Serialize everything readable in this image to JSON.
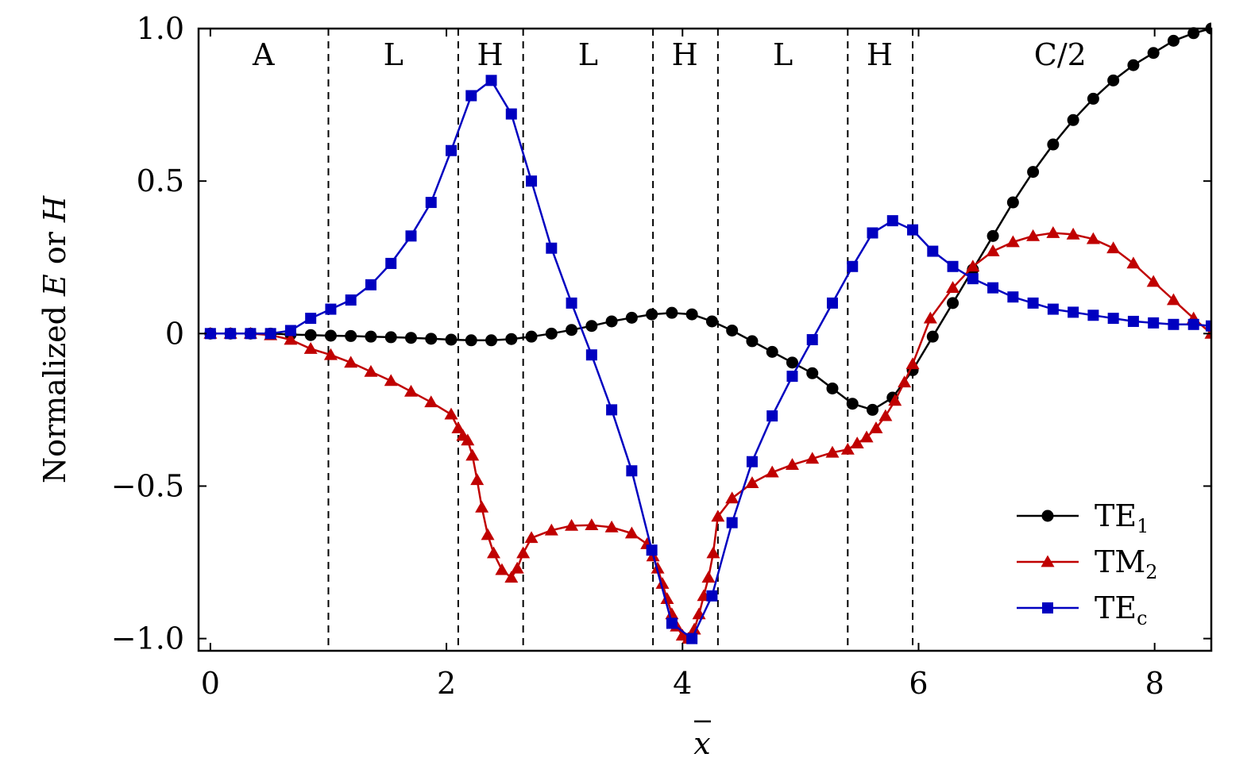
{
  "chart_data": {
    "type": "line",
    "xlabel_base": "x",
    "ylabel": {
      "prefix": "Normalized ",
      "e": "E",
      "mid": " or ",
      "h": "H"
    },
    "xlim": [
      -0.1,
      8.48
    ],
    "ylim": [
      -1.04,
      1.0
    ],
    "x_ticks": [
      0,
      2,
      4,
      6,
      8
    ],
    "x_tick_labels": [
      "0",
      "2",
      "4",
      "6",
      "8"
    ],
    "y_ticks": [
      1.0,
      0.5,
      0,
      -0.5,
      -1.0
    ],
    "y_tick_labels": [
      "1.0",
      "0.5",
      "0",
      "−0.5",
      "−1.0"
    ],
    "boundaries": [
      1.0,
      2.1,
      2.65,
      3.75,
      4.3,
      5.4,
      5.95
    ],
    "regions": [
      {
        "label": "A",
        "x": 0.45
      },
      {
        "label": "L",
        "x": 1.55
      },
      {
        "label": "H",
        "x": 2.37
      },
      {
        "label": "L",
        "x": 3.2
      },
      {
        "label": "H",
        "x": 4.02
      },
      {
        "label": "L",
        "x": 4.85
      },
      {
        "label": "H",
        "x": 5.67
      },
      {
        "label": "C/2",
        "x": 7.2
      }
    ],
    "series": [
      {
        "name": "TE",
        "sub": "1",
        "color": "#000000",
        "marker": "circle",
        "x": [
          0,
          0.17,
          0.34,
          0.51,
          0.68,
          0.85,
          1.02,
          1.19,
          1.36,
          1.53,
          1.7,
          1.87,
          2.04,
          2.21,
          2.38,
          2.55,
          2.72,
          2.89,
          3.06,
          3.23,
          3.4,
          3.57,
          3.74,
          3.91,
          4.08,
          4.25,
          4.42,
          4.59,
          4.76,
          4.93,
          5.1,
          5.27,
          5.44,
          5.61,
          5.78,
          5.95,
          6.12,
          6.29,
          6.46,
          6.63,
          6.8,
          6.97,
          7.14,
          7.31,
          7.48,
          7.65,
          7.82,
          7.99,
          8.16,
          8.33,
          8.48
        ],
        "y": [
          0,
          0,
          0,
          0,
          -0.003,
          -0.005,
          -0.007,
          -0.008,
          -0.01,
          -0.012,
          -0.014,
          -0.017,
          -0.02,
          -0.022,
          -0.022,
          -0.018,
          -0.01,
          0,
          0.012,
          0.025,
          0.04,
          0.052,
          0.063,
          0.068,
          0.063,
          0.04,
          0.01,
          -0.025,
          -0.06,
          -0.095,
          -0.13,
          -0.18,
          -0.23,
          -0.25,
          -0.21,
          -0.12,
          -0.01,
          0.1,
          0.21,
          0.32,
          0.43,
          0.53,
          0.62,
          0.7,
          0.77,
          0.83,
          0.88,
          0.92,
          0.96,
          0.985,
          1.0
        ]
      },
      {
        "name": "TM",
        "sub": "2",
        "color": "#c00000",
        "marker": "triangle",
        "x": [
          0,
          0.17,
          0.34,
          0.51,
          0.68,
          0.85,
          1.02,
          1.19,
          1.36,
          1.53,
          1.7,
          1.87,
          2.04,
          2.1,
          2.14,
          2.18,
          2.22,
          2.26,
          2.3,
          2.35,
          2.4,
          2.47,
          2.55,
          2.6,
          2.65,
          2.72,
          2.89,
          3.06,
          3.23,
          3.4,
          3.57,
          3.7,
          3.75,
          3.79,
          3.83,
          3.87,
          3.91,
          3.95,
          4.0,
          4.05,
          4.1,
          4.14,
          4.18,
          4.22,
          4.26,
          4.3,
          4.42,
          4.59,
          4.76,
          4.93,
          5.1,
          5.27,
          5.4,
          5.48,
          5.56,
          5.64,
          5.72,
          5.8,
          5.88,
          5.95,
          6.1,
          6.29,
          6.46,
          6.63,
          6.8,
          6.97,
          7.14,
          7.31,
          7.48,
          7.65,
          7.82,
          7.99,
          8.16,
          8.33,
          8.48
        ],
        "y": [
          0,
          0,
          0,
          -0.005,
          -0.02,
          -0.05,
          -0.07,
          -0.095,
          -0.125,
          -0.155,
          -0.19,
          -0.225,
          -0.265,
          -0.31,
          -0.335,
          -0.35,
          -0.4,
          -0.48,
          -0.57,
          -0.66,
          -0.72,
          -0.775,
          -0.8,
          -0.77,
          -0.72,
          -0.67,
          -0.645,
          -0.63,
          -0.628,
          -0.635,
          -0.655,
          -0.69,
          -0.73,
          -0.77,
          -0.82,
          -0.87,
          -0.92,
          -0.96,
          -0.99,
          -1.0,
          -0.97,
          -0.92,
          -0.86,
          -0.8,
          -0.72,
          -0.6,
          -0.54,
          -0.49,
          -0.455,
          -0.43,
          -0.41,
          -0.39,
          -0.38,
          -0.36,
          -0.34,
          -0.31,
          -0.27,
          -0.22,
          -0.16,
          -0.1,
          0.05,
          0.15,
          0.22,
          0.27,
          0.3,
          0.32,
          0.33,
          0.325,
          0.31,
          0.28,
          0.23,
          0.17,
          0.11,
          0.05,
          0.0
        ]
      },
      {
        "name": "TE",
        "sub": "c",
        "color": "#0000c0",
        "marker": "square",
        "x": [
          0,
          0.17,
          0.34,
          0.51,
          0.68,
          0.85,
          1.02,
          1.19,
          1.36,
          1.53,
          1.7,
          1.87,
          2.04,
          2.21,
          2.38,
          2.55,
          2.72,
          2.89,
          3.06,
          3.23,
          3.4,
          3.57,
          3.74,
          3.91,
          4.08,
          4.25,
          4.42,
          4.59,
          4.76,
          4.93,
          5.1,
          5.27,
          5.44,
          5.61,
          5.78,
          5.95,
          6.12,
          6.29,
          6.46,
          6.63,
          6.8,
          6.97,
          7.14,
          7.31,
          7.48,
          7.65,
          7.82,
          7.99,
          8.16,
          8.33,
          8.48
        ],
        "y": [
          0,
          0,
          0,
          0,
          0.01,
          0.05,
          0.08,
          0.11,
          0.16,
          0.23,
          0.32,
          0.43,
          0.6,
          0.78,
          0.83,
          0.72,
          0.5,
          0.28,
          0.1,
          -0.07,
          -0.25,
          -0.45,
          -0.71,
          -0.95,
          -1.0,
          -0.86,
          -0.62,
          -0.42,
          -0.27,
          -0.14,
          -0.02,
          0.1,
          0.22,
          0.33,
          0.37,
          0.34,
          0.27,
          0.22,
          0.18,
          0.15,
          0.12,
          0.1,
          0.08,
          0.07,
          0.06,
          0.05,
          0.04,
          0.035,
          0.03,
          0.03,
          0.025
        ]
      }
    ]
  }
}
